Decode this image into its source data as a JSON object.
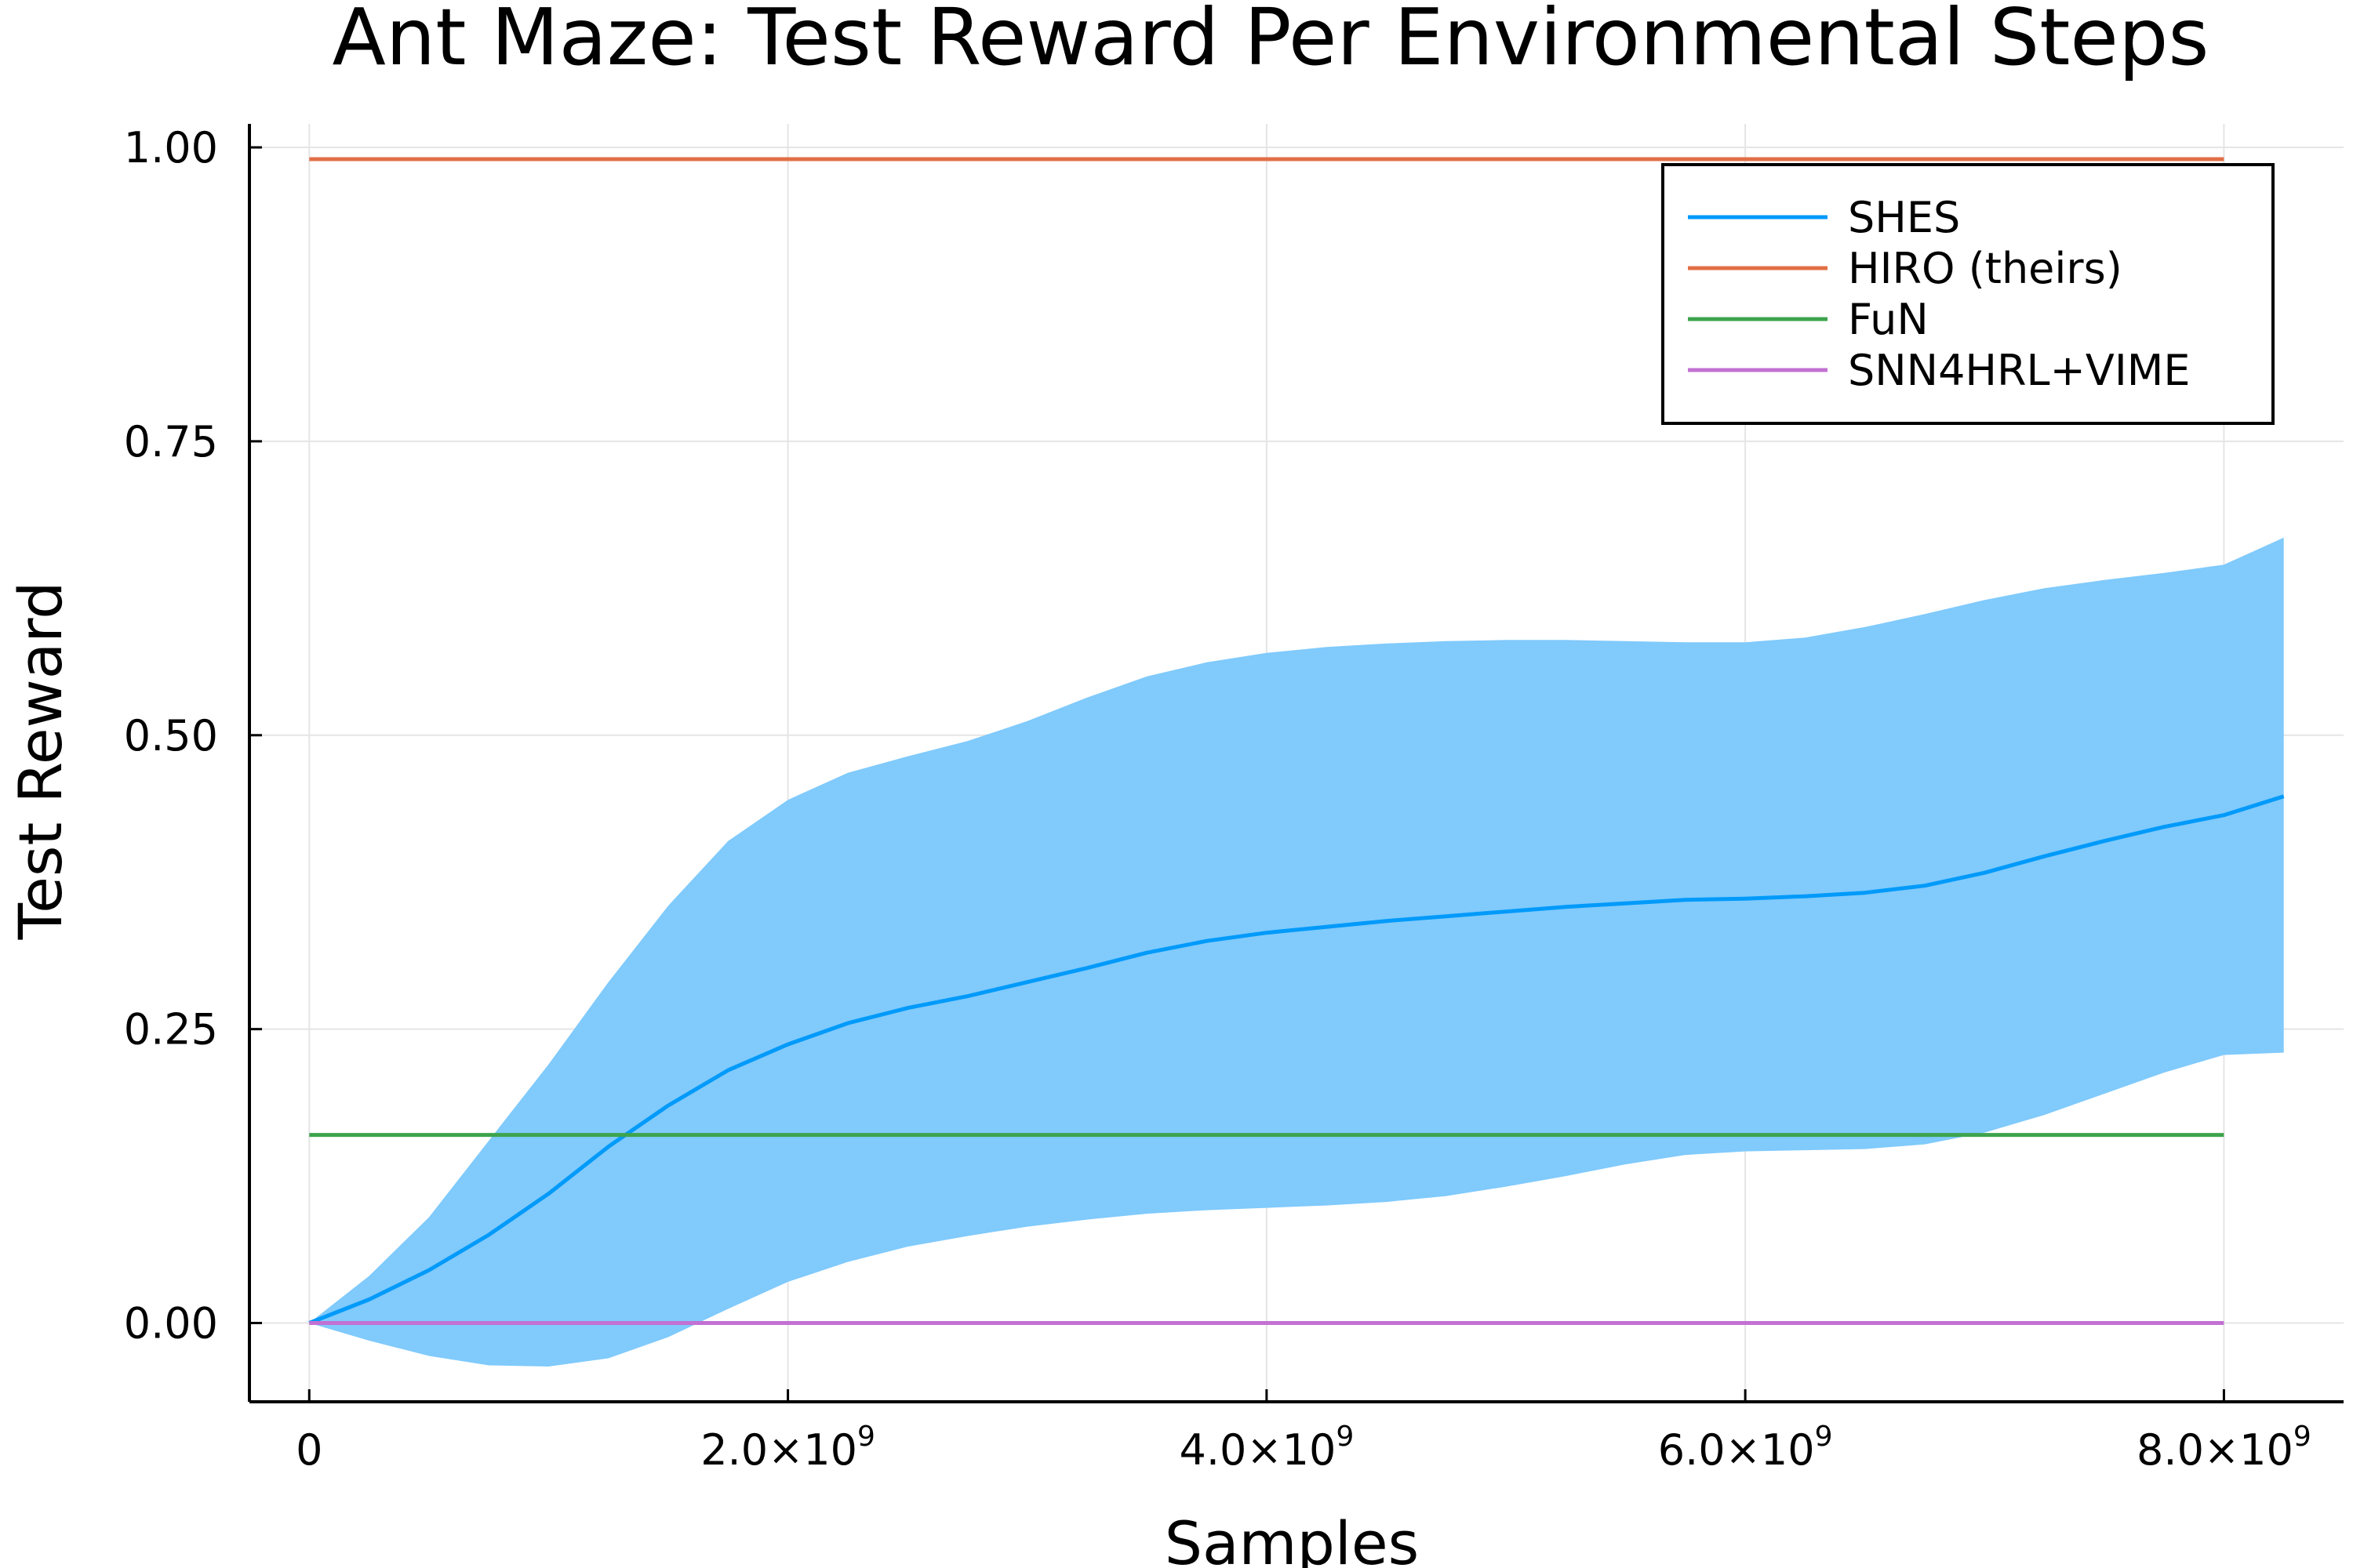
{
  "chart_data": {
    "type": "line",
    "title": "Ant Maze: Test Reward Per Environmental Steps",
    "xlabel": "Samples",
    "ylabel": "Test Reward",
    "xlim": [
      -250000000,
      8500000000
    ],
    "ylim": [
      -0.067,
      1.02
    ],
    "grid": true,
    "legend_position": "top-right",
    "x_ticks": [
      {
        "value": 0,
        "mantissa": "0",
        "power": ""
      },
      {
        "value": 2000000000,
        "mantissa": "2.0×10",
        "power": "9"
      },
      {
        "value": 4000000000,
        "mantissa": "4.0×10",
        "power": "9"
      },
      {
        "value": 6000000000,
        "mantissa": "6.0×10",
        "power": "9"
      },
      {
        "value": 8000000000,
        "mantissa": "8.0×10",
        "power": "9"
      }
    ],
    "y_ticks": [
      {
        "value": 0.0,
        "label": "0.00"
      },
      {
        "value": 0.25,
        "label": "0.25"
      },
      {
        "value": 0.5,
        "label": "0.50"
      },
      {
        "value": 0.75,
        "label": "0.75"
      },
      {
        "value": 1.0,
        "label": "1.00"
      }
    ],
    "series": [
      {
        "name": "SHES",
        "color": "#009AFA",
        "band_color": "#80CAFC",
        "x": [
          0,
          250000000,
          500000000,
          750000000,
          1000000000,
          1250000000,
          1500000000,
          1750000000,
          2000000000,
          2250000000,
          2500000000,
          2750000000,
          3000000000,
          3250000000,
          3500000000,
          3750000000,
          4000000000,
          4250000000,
          4500000000,
          4750000000,
          5000000000,
          5250000000,
          5500000000,
          5750000000,
          6000000000,
          6250000000,
          6500000000,
          6750000000,
          7000000000,
          7250000000,
          7500000000,
          7750000000,
          8000000000,
          8250000000
        ],
        "values": [
          0,
          0.02,
          0.045,
          0.075,
          0.11,
          0.15,
          0.185,
          0.215,
          0.237,
          0.255,
          0.268,
          0.278,
          0.29,
          0.302,
          0.315,
          0.325,
          0.332,
          0.337,
          0.342,
          0.346,
          0.35,
          0.354,
          0.357,
          0.36,
          0.361,
          0.363,
          0.366,
          0.372,
          0.383,
          0.397,
          0.41,
          0.422,
          0.432,
          0.448
        ],
        "lower": [
          0,
          -0.015,
          -0.028,
          -0.036,
          -0.037,
          -0.03,
          -0.012,
          0.012,
          0.035,
          0.052,
          0.065,
          0.074,
          0.082,
          0.088,
          0.093,
          0.096,
          0.098,
          0.1,
          0.103,
          0.108,
          0.116,
          0.125,
          0.135,
          0.143,
          0.146,
          0.147,
          0.148,
          0.152,
          0.162,
          0.177,
          0.195,
          0.213,
          0.228,
          0.23
        ],
        "upper": [
          0,
          0.04,
          0.09,
          0.155,
          0.22,
          0.29,
          0.355,
          0.41,
          0.445,
          0.468,
          0.482,
          0.495,
          0.512,
          0.532,
          0.55,
          0.562,
          0.57,
          0.575,
          0.578,
          0.58,
          0.581,
          0.581,
          0.58,
          0.579,
          0.579,
          0.583,
          0.592,
          0.603,
          0.615,
          0.625,
          0.632,
          0.638,
          0.645,
          0.668
        ]
      },
      {
        "name": "HIRO (theirs)",
        "color": "#E26F46",
        "x": [
          0,
          8000000000
        ],
        "values": [
          0.99,
          0.99
        ]
      },
      {
        "name": "FuN",
        "color": "#3DA44D",
        "x": [
          0,
          8000000000
        ],
        "values": [
          0.16,
          0.16
        ]
      },
      {
        "name": "SNN4HRL+VIME",
        "color": "#C271D2",
        "x": [
          0,
          8000000000
        ],
        "values": [
          0.0,
          0.0
        ]
      }
    ]
  }
}
